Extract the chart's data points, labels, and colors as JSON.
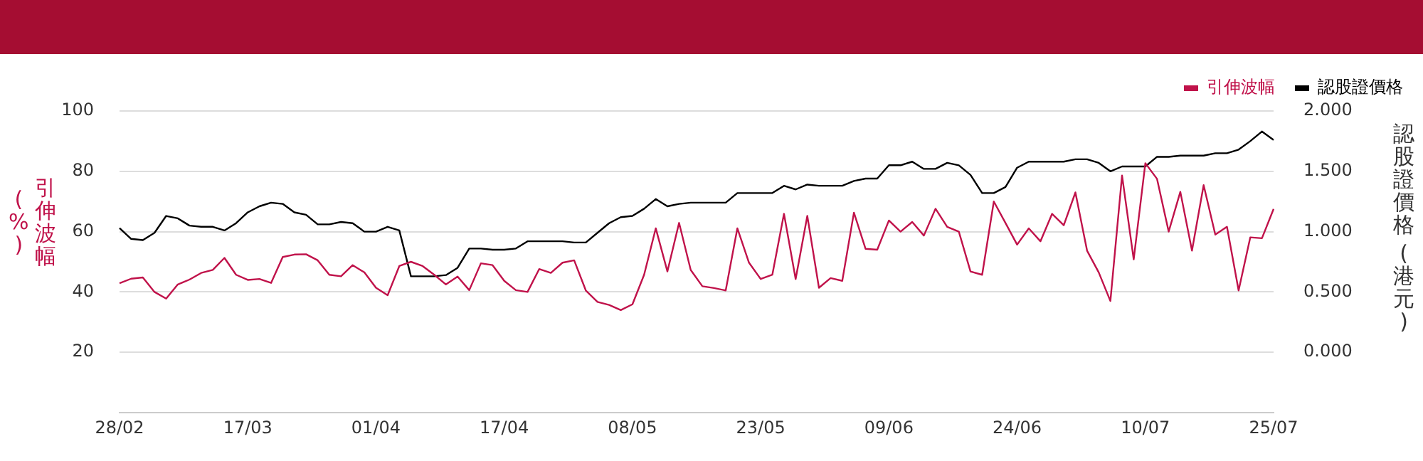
{
  "chart_data": {
    "type": "line",
    "ylabel": "引伸波幅 (%)",
    "y2label": "認股證價格 (港元)",
    "categories": [
      "28/02",
      null,
      null,
      null,
      null,
      null,
      null,
      null,
      null,
      null,
      null,
      "17/03",
      null,
      null,
      null,
      null,
      null,
      null,
      null,
      null,
      null,
      null,
      "01/04",
      null,
      null,
      null,
      null,
      null,
      null,
      null,
      null,
      null,
      null,
      "17/04",
      null,
      null,
      null,
      null,
      null,
      null,
      null,
      null,
      null,
      null,
      "08/05",
      null,
      null,
      null,
      null,
      null,
      null,
      null,
      null,
      null,
      null,
      "23/05",
      null,
      null,
      null,
      null,
      null,
      null,
      null,
      null,
      null,
      null,
      "09/06",
      null,
      null,
      null,
      null,
      null,
      null,
      null,
      null,
      null,
      null,
      "24/06",
      null,
      null,
      null,
      null,
      null,
      null,
      null,
      null,
      null,
      null,
      "10/07",
      null,
      null,
      null,
      null,
      null,
      null,
      null,
      null,
      null,
      null,
      "25/07"
    ],
    "series": [
      {
        "name": "引伸波幅",
        "color": "#c0124a",
        "values": [
          42.9,
          44.4,
          44.8,
          40,
          37.8,
          42.5,
          44.1,
          46.3,
          47.3,
          51.3,
          45.7,
          44,
          44.3,
          43,
          51.6,
          52.4,
          52.5,
          50.5,
          45.7,
          45.2,
          48.9,
          46.5,
          41.4,
          38.9,
          48.6,
          50,
          48.6,
          45.7,
          42.5,
          45.1,
          40.6,
          49.5,
          48.9,
          43.7,
          40.6,
          40,
          47.6,
          46.3,
          49.7,
          50.5,
          40.5,
          36.7,
          35.7,
          34,
          35.9,
          45.7,
          61.1,
          46.8,
          62.9,
          47.3,
          41.9,
          41.3,
          40.5,
          61.1,
          49.7,
          44.3,
          45.7,
          65.9,
          44.3,
          65.2,
          41.4,
          44.6,
          43.7,
          66.3,
          54.3,
          54,
          63.7,
          60,
          63.2,
          58.7,
          67.6,
          61.6,
          60,
          46.8,
          45.7,
          70,
          62.9,
          55.7,
          61.1,
          56.8,
          65.9,
          62.1,
          73,
          53.7,
          46.5,
          37,
          78.6,
          50.8,
          82.7,
          77.5,
          60,
          73.2,
          53.7,
          75.4,
          59,
          61.6,
          40.5,
          58.1,
          57.8,
          67.5
        ]
      },
      {
        "name": "認股證價格",
        "color": "#000000",
        "axis": "y2",
        "values": [
          1.03,
          0.94,
          0.93,
          0.99,
          1.13,
          1.11,
          1.05,
          1.04,
          1.04,
          1.01,
          1.07,
          1.16,
          1.21,
          1.24,
          1.23,
          1.16,
          1.14,
          1.06,
          1.06,
          1.08,
          1.07,
          1.0,
          1.0,
          1.04,
          1.01,
          0.63,
          0.63,
          0.63,
          0.64,
          0.7,
          0.86,
          0.86,
          0.85,
          0.85,
          0.86,
          0.92,
          0.92,
          0.92,
          0.92,
          0.91,
          0.91,
          0.99,
          1.07,
          1.12,
          1.13,
          1.19,
          1.27,
          1.21,
          1.23,
          1.24,
          1.24,
          1.24,
          1.24,
          1.32,
          1.32,
          1.32,
          1.32,
          1.38,
          1.35,
          1.39,
          1.38,
          1.38,
          1.38,
          1.42,
          1.44,
          1.44,
          1.55,
          1.55,
          1.58,
          1.52,
          1.52,
          1.57,
          1.55,
          1.47,
          1.32,
          1.32,
          1.37,
          1.53,
          1.58,
          1.58,
          1.58,
          1.58,
          1.6,
          1.6,
          1.57,
          1.5,
          1.54,
          1.54,
          1.54,
          1.62,
          1.62,
          1.63,
          1.63,
          1.63,
          1.65,
          1.65,
          1.68,
          1.75,
          1.83,
          1.76
        ]
      }
    ],
    "ylim": [
      0,
      100
    ],
    "yticks": [
      20,
      40,
      60,
      80,
      100
    ],
    "y2lim": [
      -0.5,
      2
    ],
    "y2ticks": [
      {
        "value": 0,
        "label": "0.000"
      },
      {
        "value": 0.5,
        "label": "0.500"
      },
      {
        "value": 1,
        "label": "1.000"
      },
      {
        "value": 1.5,
        "label": "1.500"
      },
      {
        "value": 2,
        "label": "2.000"
      }
    ],
    "grid": "y",
    "legend": "top right",
    "marker": "none",
    "line_style": "solid"
  }
}
